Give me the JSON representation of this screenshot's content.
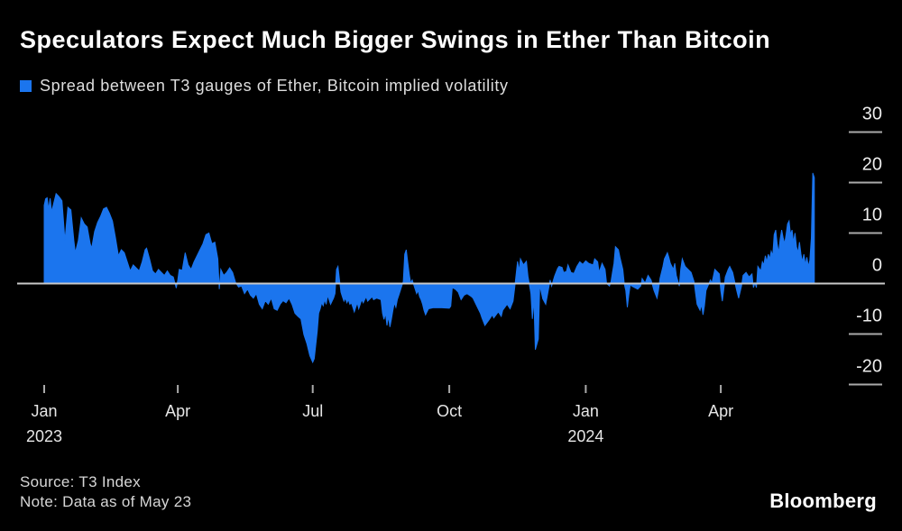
{
  "footer": {
    "source": "Source: T3 Index",
    "note": "Note: Data as of May 23",
    "brand": "Bloomberg"
  },
  "colors": {
    "background": "#000000",
    "series": "#1b75ee",
    "baseline": "#c9c9c9",
    "tick": "#aaaaaa",
    "axis_text": "#ececec",
    "title_text": "#ffffff",
    "legend_text": "#dedede",
    "footer_text": "#d6d6d6"
  },
  "chart_data": {
    "type": "area",
    "title": "Speculators Expect Much Bigger Swings in Ether Than Bitcoin",
    "legend_label": "Spread between T3 gauges of Ether, Bitcoin implied volatility",
    "series_name": "Ether minus Bitcoin implied volatility (T3 gauges)",
    "xlabel": "",
    "ylabel": "",
    "grid": false,
    "legend_position": "top-left",
    "x_unit": "days since Jan 1, 2023",
    "xlim_days": [
      0,
      519
    ],
    "ylim": [
      -25,
      33
    ],
    "y_ticks": [
      30,
      20,
      10,
      0,
      -10,
      -20
    ],
    "x_ticks": [
      {
        "day": 0,
        "label": "Jan",
        "sublabel": "2023"
      },
      {
        "day": 90,
        "label": "Apr",
        "sublabel": ""
      },
      {
        "day": 181,
        "label": "Jul",
        "sublabel": ""
      },
      {
        "day": 273,
        "label": "Oct",
        "sublabel": ""
      },
      {
        "day": 365,
        "label": "Jan",
        "sublabel": "2024"
      },
      {
        "day": 456,
        "label": "Apr",
        "sublabel": ""
      }
    ],
    "points": [
      [
        0,
        15.5
      ],
      [
        1,
        16.8
      ],
      [
        2,
        17.0
      ],
      [
        3,
        14.7
      ],
      [
        4,
        16.9
      ],
      [
        5,
        14.2
      ],
      [
        8,
        17.8
      ],
      [
        10,
        17.2
      ],
      [
        12,
        16.4
      ],
      [
        14,
        8.5
      ],
      [
        16,
        15.1
      ],
      [
        18,
        14.6
      ],
      [
        20,
        8.5
      ],
      [
        21,
        6.1
      ],
      [
        23,
        8.5
      ],
      [
        25,
        13.0
      ],
      [
        27,
        11.8
      ],
      [
        29,
        11.2
      ],
      [
        31,
        7.9
      ],
      [
        32,
        7.0
      ],
      [
        34,
        10.3
      ],
      [
        36,
        12.1
      ],
      [
        38,
        13.3
      ],
      [
        40,
        14.8
      ],
      [
        42,
        15.1
      ],
      [
        44,
        13.9
      ],
      [
        46,
        12.4
      ],
      [
        48,
        9.1
      ],
      [
        50,
        5.5
      ],
      [
        52,
        6.7
      ],
      [
        54,
        6.1
      ],
      [
        56,
        4.3
      ],
      [
        58,
        2.5
      ],
      [
        60,
        3.7
      ],
      [
        62,
        3.1
      ],
      [
        64,
        2.5
      ],
      [
        66,
        4.3
      ],
      [
        68,
        6.7
      ],
      [
        69,
        7.0
      ],
      [
        71,
        4.9
      ],
      [
        73,
        2.5
      ],
      [
        75,
        1.9
      ],
      [
        77,
        2.8
      ],
      [
        79,
        2.2
      ],
      [
        81,
        1.6
      ],
      [
        83,
        2.5
      ],
      [
        85,
        1.6
      ],
      [
        87,
        1.3
      ],
      [
        89,
        -0.9
      ],
      [
        90,
        0.7
      ],
      [
        91,
        2.8
      ],
      [
        93,
        2.6
      ],
      [
        95,
        6.1
      ],
      [
        97,
        3.7
      ],
      [
        99,
        2.8
      ],
      [
        101,
        4.3
      ],
      [
        103,
        5.5
      ],
      [
        105,
        6.7
      ],
      [
        107,
        7.9
      ],
      [
        109,
        9.7
      ],
      [
        111,
        10.0
      ],
      [
        113,
        7.9
      ],
      [
        115,
        8.2
      ],
      [
        117,
        4.9
      ],
      [
        118,
        -1.1
      ],
      [
        119,
        2.8
      ],
      [
        121,
        1.6
      ],
      [
        123,
        2.2
      ],
      [
        125,
        3.1
      ],
      [
        127,
        2.2
      ],
      [
        129,
        0.2
      ],
      [
        131,
        -0.7
      ],
      [
        133,
        -0.5
      ],
      [
        135,
        -2.0
      ],
      [
        137,
        -1.1
      ],
      [
        139,
        -2.3
      ],
      [
        141,
        -2.9
      ],
      [
        143,
        -2.0
      ],
      [
        145,
        -4.1
      ],
      [
        147,
        -5.0
      ],
      [
        149,
        -3.4
      ],
      [
        151,
        -4.1
      ],
      [
        153,
        -2.9
      ],
      [
        155,
        -5.0
      ],
      [
        157,
        -5.3
      ],
      [
        159,
        -4.1
      ],
      [
        161,
        -3.4
      ],
      [
        163,
        -3.8
      ],
      [
        165,
        -2.9
      ],
      [
        167,
        -4.1
      ],
      [
        169,
        -5.9
      ],
      [
        171,
        -6.5
      ],
      [
        173,
        -7.0
      ],
      [
        175,
        -10.1
      ],
      [
        177,
        -11.9
      ],
      [
        179,
        -14.3
      ],
      [
        181,
        -15.6
      ],
      [
        182,
        -14.9
      ],
      [
        184,
        -9.5
      ],
      [
        185,
        -5.9
      ],
      [
        186,
        -5.0
      ],
      [
        187,
        -3.8
      ],
      [
        188,
        -4.4
      ],
      [
        189,
        -3.2
      ],
      [
        190,
        -4.1
      ],
      [
        191,
        -2.3
      ],
      [
        192,
        -3.2
      ],
      [
        193,
        -4.1
      ],
      [
        194,
        -3.5
      ],
      [
        195,
        -2.9
      ],
      [
        196,
        -2.0
      ],
      [
        197,
        2.8
      ],
      [
        198,
        3.4
      ],
      [
        199,
        0.7
      ],
      [
        200,
        -1.7
      ],
      [
        201,
        -2.6
      ],
      [
        202,
        -3.5
      ],
      [
        203,
        -2.9
      ],
      [
        204,
        -3.8
      ],
      [
        205,
        -3.2
      ],
      [
        206,
        -4.1
      ],
      [
        207,
        -3.8
      ],
      [
        208,
        -4.7
      ],
      [
        209,
        -5.6
      ],
      [
        210,
        -4.7
      ],
      [
        211,
        -3.8
      ],
      [
        212,
        -5.0
      ],
      [
        213,
        -4.1
      ],
      [
        214,
        -3.2
      ],
      [
        215,
        -3.8
      ],
      [
        216,
        -3.2
      ],
      [
        217,
        -2.6
      ],
      [
        218,
        -3.5
      ],
      [
        221,
        -2.6
      ],
      [
        222,
        -3.2
      ],
      [
        224,
        -2.9
      ],
      [
        227,
        -3.2
      ],
      [
        228,
        -5.9
      ],
      [
        229,
        -7.1
      ],
      [
        230,
        -5.9
      ],
      [
        231,
        -8.3
      ],
      [
        232,
        -6.5
      ],
      [
        233,
        -8.6
      ],
      [
        234,
        -7.1
      ],
      [
        235,
        -5.3
      ],
      [
        236,
        -3.8
      ],
      [
        237,
        -4.7
      ],
      [
        238,
        -3.2
      ],
      [
        239,
        -2.3
      ],
      [
        240,
        -1.4
      ],
      [
        241,
        -0.5
      ],
      [
        242,
        0.4
      ],
      [
        243,
        5.8
      ],
      [
        244,
        6.7
      ],
      [
        245,
        4.3
      ],
      [
        246,
        1.9
      ],
      [
        247,
        0.1
      ],
      [
        248,
        0.7
      ],
      [
        249,
        -0.2
      ],
      [
        250,
        -1.1
      ],
      [
        251,
        -2.0
      ],
      [
        252,
        -1.4
      ],
      [
        253,
        -2.6
      ],
      [
        254,
        -3.2
      ],
      [
        255,
        -4.1
      ],
      [
        256,
        -5.3
      ],
      [
        257,
        -6.2
      ],
      [
        258,
        -5.6
      ],
      [
        259,
        -5.0
      ],
      [
        262,
        -4.8
      ],
      [
        268,
        -4.8
      ],
      [
        273,
        -4.9
      ],
      [
        274,
        -4.5
      ],
      [
        275,
        -0.8
      ],
      [
        277,
        -1.1
      ],
      [
        279,
        -1.7
      ],
      [
        281,
        -3.2
      ],
      [
        283,
        -2.3
      ],
      [
        285,
        -2.0
      ],
      [
        288,
        -2.6
      ],
      [
        289,
        -2.9
      ],
      [
        291,
        -4.1
      ],
      [
        294,
        -5.9
      ],
      [
        295,
        -6.8
      ],
      [
        297,
        -8.3
      ],
      [
        300,
        -7.1
      ],
      [
        302,
        -6.2
      ],
      [
        303,
        -6.8
      ],
      [
        306,
        -5.6
      ],
      [
        308,
        -6.5
      ],
      [
        309,
        -5.3
      ],
      [
        312,
        -4.1
      ],
      [
        314,
        -5.0
      ],
      [
        316,
        -3.5
      ],
      [
        317,
        -1.0
      ],
      [
        319,
        4.4
      ],
      [
        320,
        2.5
      ],
      [
        321,
        4.9
      ],
      [
        323,
        3.7
      ],
      [
        325,
        4.4
      ],
      [
        326,
        1.5
      ],
      [
        328,
        -2.0
      ],
      [
        329,
        -7.0
      ],
      [
        330,
        -3.0
      ],
      [
        331,
        -13.1
      ],
      [
        333,
        -11.0
      ],
      [
        334,
        -0.3
      ],
      [
        335,
        -1.7
      ],
      [
        336,
        -3.0
      ],
      [
        338,
        -4.1
      ],
      [
        339,
        -2.5
      ],
      [
        341,
        0.7
      ],
      [
        342,
        -0.5
      ],
      [
        344,
        1.5
      ],
      [
        346,
        3.0
      ],
      [
        347,
        3.4
      ],
      [
        349,
        3.2
      ],
      [
        350,
        2.2
      ],
      [
        352,
        2.4
      ],
      [
        353,
        3.7
      ],
      [
        355,
        2.2
      ],
      [
        357,
        2.0
      ],
      [
        359,
        3.4
      ],
      [
        361,
        4.3
      ],
      [
        363,
        3.8
      ],
      [
        365,
        4.5
      ],
      [
        367,
        4.0
      ],
      [
        370,
        3.7
      ],
      [
        371,
        4.9
      ],
      [
        373,
        4.3
      ],
      [
        374,
        2.2
      ],
      [
        376,
        4.0
      ],
      [
        378,
        2.8
      ],
      [
        379,
        0.0
      ],
      [
        381,
        -0.5
      ],
      [
        382,
        0.4
      ],
      [
        383,
        2.2
      ],
      [
        384,
        4.0
      ],
      [
        385,
        7.3
      ],
      [
        387,
        6.7
      ],
      [
        388,
        5.2
      ],
      [
        390,
        2.8
      ],
      [
        391,
        -0.2
      ],
      [
        392,
        -1.4
      ],
      [
        393,
        -4.7
      ],
      [
        394,
        -2.3
      ],
      [
        395,
        -0.2
      ],
      [
        396,
        -0.5
      ],
      [
        398,
        -0.8
      ],
      [
        400,
        -1.1
      ],
      [
        402,
        -0.5
      ],
      [
        403,
        1.0
      ],
      [
        405,
        0.1
      ],
      [
        407,
        1.6
      ],
      [
        409,
        0.7
      ],
      [
        411,
        -1.4
      ],
      [
        413,
        -2.9
      ],
      [
        414,
        -1.4
      ],
      [
        415,
        1.0
      ],
      [
        417,
        3.4
      ],
      [
        418,
        4.9
      ],
      [
        420,
        6.1
      ],
      [
        421,
        5.2
      ],
      [
        422,
        4.0
      ],
      [
        424,
        2.8
      ],
      [
        425,
        4.0
      ],
      [
        426,
        1.6
      ],
      [
        428,
        -0.5
      ],
      [
        429,
        2.8
      ],
      [
        430,
        4.9
      ],
      [
        432,
        3.4
      ],
      [
        434,
        2.8
      ],
      [
        436,
        2.2
      ],
      [
        438,
        0.4
      ],
      [
        439,
        -2.0
      ],
      [
        440,
        -4.1
      ],
      [
        442,
        -5.3
      ],
      [
        443,
        -4.1
      ],
      [
        444,
        -6.2
      ],
      [
        445,
        -4.4
      ],
      [
        446,
        -1.4
      ],
      [
        449,
        0.7
      ],
      [
        450,
        0.1
      ],
      [
        452,
        2.8
      ],
      [
        455,
        1.9
      ],
      [
        456,
        -1.4
      ],
      [
        457,
        -3.5
      ],
      [
        459,
        1.3
      ],
      [
        461,
        2.8
      ],
      [
        462,
        3.4
      ],
      [
        464,
        2.2
      ],
      [
        466,
        -0.5
      ],
      [
        467,
        -1.7
      ],
      [
        468,
        -2.9
      ],
      [
        470,
        -0.5
      ],
      [
        471,
        1.6
      ],
      [
        473,
        2.2
      ],
      [
        475,
        1.3
      ],
      [
        477,
        1.9
      ],
      [
        478,
        -0.8
      ],
      [
        479,
        0.1
      ],
      [
        480,
        -0.8
      ],
      [
        481,
        3.4
      ],
      [
        483,
        2.5
      ],
      [
        484,
        4.3
      ],
      [
        485,
        3.7
      ],
      [
        486,
        5.5
      ],
      [
        487,
        4.3
      ],
      [
        488,
        5.8
      ],
      [
        489,
        4.9
      ],
      [
        490,
        6.4
      ],
      [
        491,
        5.5
      ],
      [
        492,
        9.7
      ],
      [
        493,
        10.6
      ],
      [
        494,
        7.9
      ],
      [
        495,
        6.1
      ],
      [
        496,
        8.8
      ],
      [
        497,
        10.6
      ],
      [
        498,
        9.1
      ],
      [
        499,
        7.9
      ],
      [
        500,
        9.7
      ],
      [
        501,
        11.8
      ],
      [
        502,
        12.4
      ],
      [
        503,
        9.7
      ],
      [
        504,
        10.6
      ],
      [
        505,
        8.2
      ],
      [
        506,
        10.0
      ],
      [
        507,
        7.3
      ],
      [
        508,
        6.1
      ],
      [
        509,
        8.2
      ],
      [
        510,
        5.8
      ],
      [
        511,
        4.3
      ],
      [
        512,
        5.8
      ],
      [
        513,
        3.7
      ],
      [
        514,
        5.2
      ],
      [
        515,
        3.4
      ],
      [
        516,
        4.6
      ],
      [
        517,
        9.0
      ],
      [
        518,
        21.9
      ],
      [
        519,
        21.0
      ]
    ]
  }
}
